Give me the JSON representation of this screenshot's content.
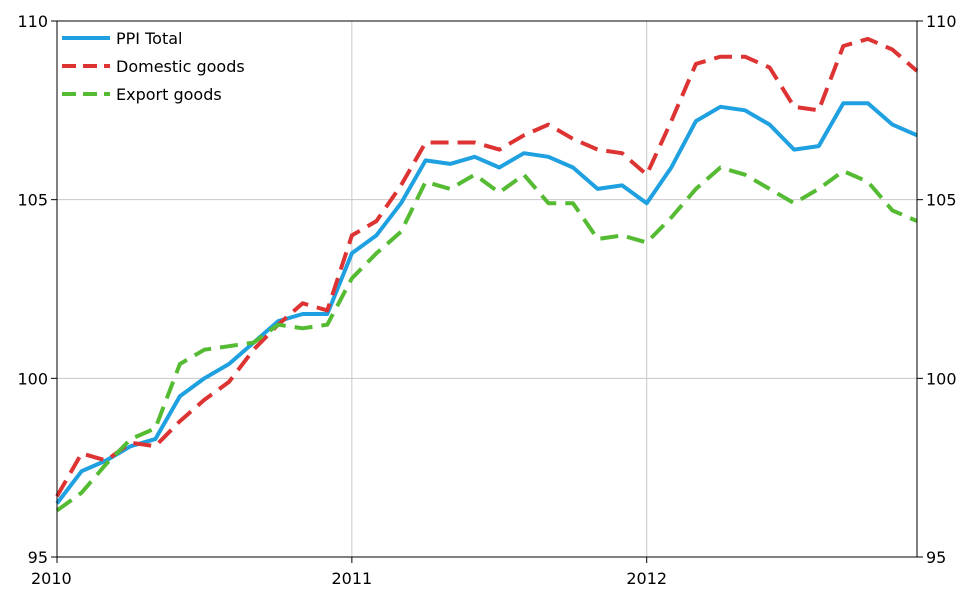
{
  "chart_data": {
    "type": "line",
    "x_axis": {
      "range": [
        "2010-01",
        "2012-11"
      ],
      "tick_labels": [
        "2010",
        "2011",
        "2012"
      ],
      "tick_positions": [
        "2010-01",
        "2011-01",
        "2012-01"
      ]
    },
    "y_axis": {
      "range": [
        95,
        110
      ],
      "tick_values": [
        95,
        100,
        105,
        110
      ],
      "tick_labels": [
        "95",
        "100",
        "105",
        "110"
      ],
      "labels_on_both_sides": true
    },
    "grid": {
      "vertical": true,
      "horizontal": true
    },
    "legend": {
      "position": "top-left"
    },
    "series": [
      {
        "name": "PPI Total",
        "color": "#1fa0e0",
        "style": "solid",
        "points": [
          [
            "2010-01",
            96.5
          ],
          [
            "2010-02",
            97.4
          ],
          [
            "2010-03",
            97.7
          ],
          [
            "2010-04",
            98.1
          ],
          [
            "2010-05",
            98.3
          ],
          [
            "2010-06",
            99.5
          ],
          [
            "2010-07",
            100.0
          ],
          [
            "2010-08",
            100.4
          ],
          [
            "2010-09",
            101.0
          ],
          [
            "2010-10",
            101.6
          ],
          [
            "2010-11",
            101.8
          ],
          [
            "2010-12",
            101.8
          ],
          [
            "2011-01",
            103.5
          ],
          [
            "2011-02",
            104.0
          ],
          [
            "2011-03",
            104.9
          ],
          [
            "2011-04",
            106.1
          ],
          [
            "2011-05",
            106.0
          ],
          [
            "2011-06",
            106.2
          ],
          [
            "2011-07",
            105.9
          ],
          [
            "2011-08",
            106.3
          ],
          [
            "2011-09",
            106.2
          ],
          [
            "2011-10",
            105.9
          ],
          [
            "2011-11",
            105.3
          ],
          [
            "2011-12",
            105.4
          ],
          [
            "2012-01",
            104.9
          ],
          [
            "2012-02",
            105.9
          ],
          [
            "2012-03",
            107.2
          ],
          [
            "2012-04",
            107.6
          ],
          [
            "2012-05",
            107.5
          ],
          [
            "2012-06",
            107.1
          ],
          [
            "2012-07",
            106.4
          ],
          [
            "2012-08",
            106.5
          ],
          [
            "2012-09",
            107.7
          ],
          [
            "2012-10",
            107.7
          ],
          [
            "2012-11",
            107.1
          ],
          [
            "2012-12",
            106.8
          ]
        ]
      },
      {
        "name": "Domestic goods",
        "color": "#dd3333",
        "style": "dashed",
        "points": [
          [
            "2010-01",
            96.7
          ],
          [
            "2010-02",
            97.9
          ],
          [
            "2010-03",
            97.7
          ],
          [
            "2010-04",
            98.2
          ],
          [
            "2010-05",
            98.1
          ],
          [
            "2010-06",
            98.8
          ],
          [
            "2010-07",
            99.4
          ],
          [
            "2010-08",
            99.9
          ],
          [
            "2010-09",
            100.8
          ],
          [
            "2010-10",
            101.5
          ],
          [
            "2010-11",
            102.1
          ],
          [
            "2010-12",
            101.9
          ],
          [
            "2011-01",
            104.0
          ],
          [
            "2011-02",
            104.4
          ],
          [
            "2011-03",
            105.4
          ],
          [
            "2011-04",
            106.6
          ],
          [
            "2011-05",
            106.6
          ],
          [
            "2011-06",
            106.6
          ],
          [
            "2011-07",
            106.4
          ],
          [
            "2011-08",
            106.8
          ],
          [
            "2011-09",
            107.1
          ],
          [
            "2011-10",
            106.7
          ],
          [
            "2011-11",
            106.4
          ],
          [
            "2011-12",
            106.3
          ],
          [
            "2012-01",
            105.7
          ],
          [
            "2012-02",
            107.2
          ],
          [
            "2012-03",
            108.8
          ],
          [
            "2012-04",
            109.0
          ],
          [
            "2012-05",
            109.0
          ],
          [
            "2012-06",
            108.7
          ],
          [
            "2012-07",
            107.6
          ],
          [
            "2012-08",
            107.5
          ],
          [
            "2012-09",
            109.3
          ],
          [
            "2012-10",
            109.5
          ],
          [
            "2012-11",
            109.2
          ],
          [
            "2012-12",
            108.6
          ]
        ]
      },
      {
        "name": "Export goods",
        "color": "#55bb33",
        "style": "dashed",
        "points": [
          [
            "2010-01",
            96.3
          ],
          [
            "2010-02",
            96.8
          ],
          [
            "2010-03",
            97.6
          ],
          [
            "2010-04",
            98.3
          ],
          [
            "2010-05",
            98.6
          ],
          [
            "2010-06",
            100.4
          ],
          [
            "2010-07",
            100.8
          ],
          [
            "2010-08",
            100.9
          ],
          [
            "2010-09",
            101.0
          ],
          [
            "2010-10",
            101.5
          ],
          [
            "2010-11",
            101.4
          ],
          [
            "2010-12",
            101.5
          ],
          [
            "2011-01",
            102.8
          ],
          [
            "2011-02",
            103.5
          ],
          [
            "2011-03",
            104.1
          ],
          [
            "2011-04",
            105.5
          ],
          [
            "2011-05",
            105.3
          ],
          [
            "2011-06",
            105.7
          ],
          [
            "2011-07",
            105.2
          ],
          [
            "2011-08",
            105.7
          ],
          [
            "2011-09",
            104.9
          ],
          [
            "2011-10",
            104.9
          ],
          [
            "2011-11",
            103.9
          ],
          [
            "2011-12",
            104.0
          ],
          [
            "2012-01",
            103.8
          ],
          [
            "2012-02",
            104.5
          ],
          [
            "2012-03",
            105.3
          ],
          [
            "2012-04",
            105.9
          ],
          [
            "2012-05",
            105.7
          ],
          [
            "2012-06",
            105.3
          ],
          [
            "2012-07",
            104.9
          ],
          [
            "2012-08",
            105.3
          ],
          [
            "2012-09",
            105.8
          ],
          [
            "2012-10",
            105.5
          ],
          [
            "2012-11",
            104.7
          ],
          [
            "2012-12",
            104.4
          ]
        ]
      }
    ]
  }
}
